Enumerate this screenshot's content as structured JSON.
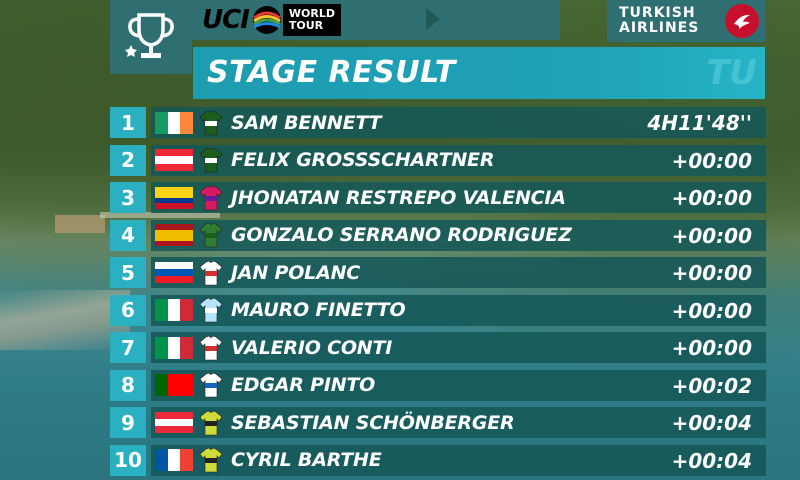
{
  "header": {
    "logo_main": "UCI",
    "logo_tag_line1": "WORLD",
    "logo_tag_line2": "TOUR",
    "sponsor_line1": "TURKISH",
    "sponsor_line2": "AIRLINES",
    "title": "STAGE RESULT",
    "title_deco": "TU"
  },
  "results": [
    {
      "pos": "1",
      "name": "SAM BENNETT",
      "time": "4H11'48''",
      "flag": "ireland",
      "jersey_color": "#1b5e20",
      "jersey_accent": "#ffffff"
    },
    {
      "pos": "2",
      "name": "FELIX GROSSSCHARTNER",
      "time": "+00:00",
      "flag": "austria",
      "jersey_color": "#1b5e20",
      "jersey_accent": "#ffffff"
    },
    {
      "pos": "3",
      "name": "JHONATAN RESTREPO VALENCIA",
      "time": "+00:00",
      "flag": "colombia",
      "jersey_color": "#d81b60",
      "jersey_accent": "#6a1b9a"
    },
    {
      "pos": "4",
      "name": "GONZALO SERRANO RODRIGUEZ",
      "time": "+00:00",
      "flag": "spain",
      "jersey_color": "#2e7d32",
      "jersey_accent": "#1b5e20"
    },
    {
      "pos": "5",
      "name": "JAN POLANC",
      "time": "+00:00",
      "flag": "slovenia",
      "jersey_color": "#ffffff",
      "jersey_accent": "#d32f2f"
    },
    {
      "pos": "6",
      "name": "MAURO FINETTO",
      "time": "+00:00",
      "flag": "italy",
      "jersey_color": "#b3e5fc",
      "jersey_accent": "#ffffff"
    },
    {
      "pos": "7",
      "name": "VALERIO CONTI",
      "time": "+00:00",
      "flag": "italy",
      "jersey_color": "#ffffff",
      "jersey_accent": "#d32f2f"
    },
    {
      "pos": "8",
      "name": "EDGAR PINTO",
      "time": "+00:02",
      "flag": "portugal",
      "jersey_color": "#ffffff",
      "jersey_accent": "#1565c0"
    },
    {
      "pos": "9",
      "name": "SEBASTIAN SCHÖNBERGER",
      "time": "+00:04",
      "flag": "austria",
      "jersey_color": "#cddc39",
      "jersey_accent": "#212121"
    },
    {
      "pos": "10",
      "name": "CYRIL BARTHE",
      "time": "+00:04",
      "flag": "france",
      "jersey_color": "#cddc39",
      "jersey_accent": "#212121"
    }
  ],
  "flags": {
    "ireland": {
      "dir": "h",
      "colors": [
        "#169b62",
        "#ffffff",
        "#ff883e"
      ]
    },
    "austria": {
      "dir": "v",
      "colors": [
        "#ed2939",
        "#ffffff",
        "#ed2939"
      ]
    },
    "colombia": {
      "dir": "v",
      "colors": [
        "#fcd116",
        "#fcd116",
        "#003893",
        "#ce1126"
      ]
    },
    "spain": {
      "dir": "v",
      "colors": [
        "#aa151b",
        "#f1bf00",
        "#f1bf00",
        "#aa151b"
      ]
    },
    "slovenia": {
      "dir": "v",
      "colors": [
        "#ffffff",
        "#0057b8",
        "#ed1c24"
      ]
    },
    "italy": {
      "dir": "h",
      "colors": [
        "#009246",
        "#ffffff",
        "#ce2b37"
      ]
    },
    "portugal": {
      "dir": "h",
      "colors": [
        "#006600",
        "#ff0000",
        "#ff0000"
      ]
    },
    "france": {
      "dir": "h",
      "colors": [
        "#0055a4",
        "#ffffff",
        "#ef4135"
      ]
    }
  }
}
